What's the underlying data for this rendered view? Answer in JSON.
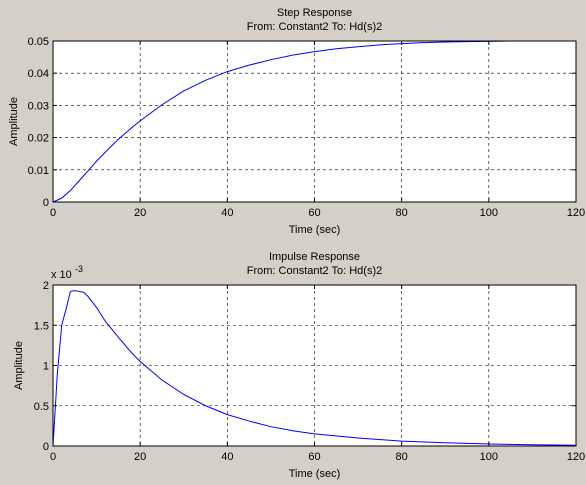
{
  "chart_data": [
    {
      "type": "line",
      "title": "Step Response",
      "subtitle": "From: Constant2  To: Hd(s)2",
      "xlabel": "Time (sec)",
      "ylabel": "Amplitude",
      "xlim": [
        0,
        120
      ],
      "ylim": [
        0,
        0.05
      ],
      "xticks": [
        "0",
        "20",
        "40",
        "60",
        "80",
        "100",
        "120"
      ],
      "yticks": [
        "0",
        "0.01",
        "0.02",
        "0.03",
        "0.04",
        "0.05"
      ],
      "exponent": "",
      "grid": true,
      "line_color": "#0000ff",
      "series": [
        {
          "x": [
            0,
            2,
            4,
            6,
            8,
            10,
            12,
            15,
            18,
            20,
            25,
            30,
            35,
            40,
            45,
            50,
            55,
            60,
            65,
            70,
            75,
            80,
            85,
            90,
            95,
            100,
            105
          ],
          "values": [
            0,
            0.0012,
            0.0036,
            0.0066,
            0.0096,
            0.0127,
            0.0155,
            0.0195,
            0.023,
            0.0252,
            0.0302,
            0.0345,
            0.0378,
            0.0405,
            0.0425,
            0.0442,
            0.0456,
            0.0467,
            0.0476,
            0.0482,
            0.0488,
            0.0492,
            0.0495,
            0.0497,
            0.0498,
            0.0499,
            0.05
          ]
        }
      ]
    },
    {
      "type": "line",
      "title": "Impulse Response",
      "subtitle": "From: Constant2  To: Hd(s)2",
      "xlabel": "Time (sec)",
      "ylabel": "Amplitude",
      "xlim": [
        0,
        120
      ],
      "ylim": [
        0,
        2
      ],
      "xticks": [
        "0",
        "20",
        "40",
        "60",
        "80",
        "100",
        "120"
      ],
      "yticks": [
        "0",
        "0.5",
        "1",
        "1.5",
        "2"
      ],
      "exponent": "x 10",
      "exponent_power": "-3",
      "grid": true,
      "line_color": "#0000ff",
      "series": [
        {
          "x": [
            0,
            1,
            2,
            3,
            4,
            5,
            6,
            7,
            8,
            10,
            12,
            15,
            18,
            20,
            25,
            30,
            35,
            40,
            45,
            50,
            55,
            60,
            70,
            80,
            90,
            100,
            110,
            120
          ],
          "values": [
            0,
            0.9,
            1.5,
            1.7,
            1.92,
            1.93,
            1.92,
            1.91,
            1.86,
            1.72,
            1.55,
            1.35,
            1.16,
            1.05,
            0.82,
            0.64,
            0.5,
            0.39,
            0.31,
            0.24,
            0.19,
            0.15,
            0.1,
            0.06,
            0.04,
            0.025,
            0.015,
            0.01
          ]
        }
      ]
    }
  ]
}
